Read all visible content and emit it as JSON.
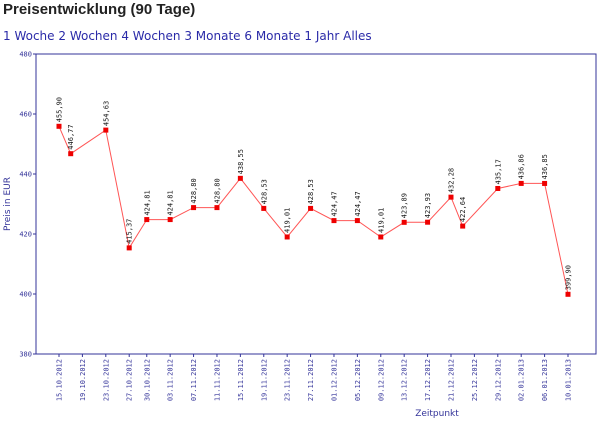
{
  "header": {
    "title": "Preisentwicklung (90 Tage)",
    "ranges": [
      "1 Woche",
      "2 Wochen",
      "4 Wochen",
      "3 Monate",
      "6 Monate",
      "1 Jahr",
      "Alles"
    ]
  },
  "chart_data": {
    "type": "line",
    "xlabel": "Zeitpunkt",
    "ylabel": "Preis in EUR",
    "ylim": [
      380,
      480
    ],
    "yticks": [
      380,
      400,
      420,
      440,
      460,
      480
    ],
    "grid": false,
    "categories": [
      "15.10.2012",
      "19.10.2012",
      "23.10.2012",
      "27.10.2012",
      "30.10.2012",
      "03.11.2012",
      "07.11.2012",
      "11.11.2012",
      "15.11.2012",
      "19.11.2012",
      "23.11.2012",
      "27.11.2012",
      "01.12.2012",
      "05.12.2012",
      "09.12.2012",
      "13.12.2012",
      "17.12.2012",
      "21.12.2012",
      "25.12.2012",
      "29.12.2012",
      "02.01.2013",
      "06.01.2013",
      "10.01.2013"
    ],
    "x": [
      "15.10.2012",
      "17.10.2012",
      "23.10.2012",
      "27.10.2012",
      "30.10.2012",
      "03.11.2012",
      "07.11.2012",
      "11.11.2012",
      "15.11.2012",
      "19.11.2012",
      "23.11.2012",
      "27.11.2012",
      "01.12.2012",
      "05.12.2012",
      "09.12.2012",
      "13.12.2012",
      "17.12.2012",
      "21.12.2012",
      "23.12.2012",
      "29.12.2012",
      "02.01.2013",
      "06.01.2013",
      "10.01.2013"
    ],
    "values": [
      455.9,
      446.77,
      454.63,
      415.37,
      424.81,
      424.81,
      428.8,
      428.8,
      438.55,
      428.53,
      419.01,
      428.53,
      424.47,
      424.47,
      419.01,
      423.89,
      423.93,
      432.28,
      422.64,
      435.17,
      436.86,
      436.85,
      399.9
    ],
    "labels": [
      "455,90",
      "446,77",
      "454,63",
      "415,37",
      "424,81",
      "424,81",
      "428,80",
      "428,80",
      "438,55",
      "428,53",
      "419,01",
      "428,53",
      "424,47",
      "424,47",
      "419,01",
      "423,89",
      "423,93",
      "432,28",
      "422,64",
      "435,17",
      "436,86",
      "436,85",
      "399,90"
    ],
    "colors": {
      "line": "#ff5555",
      "marker": "#ee0000",
      "frame": "#333399",
      "text": "#333399"
    }
  }
}
